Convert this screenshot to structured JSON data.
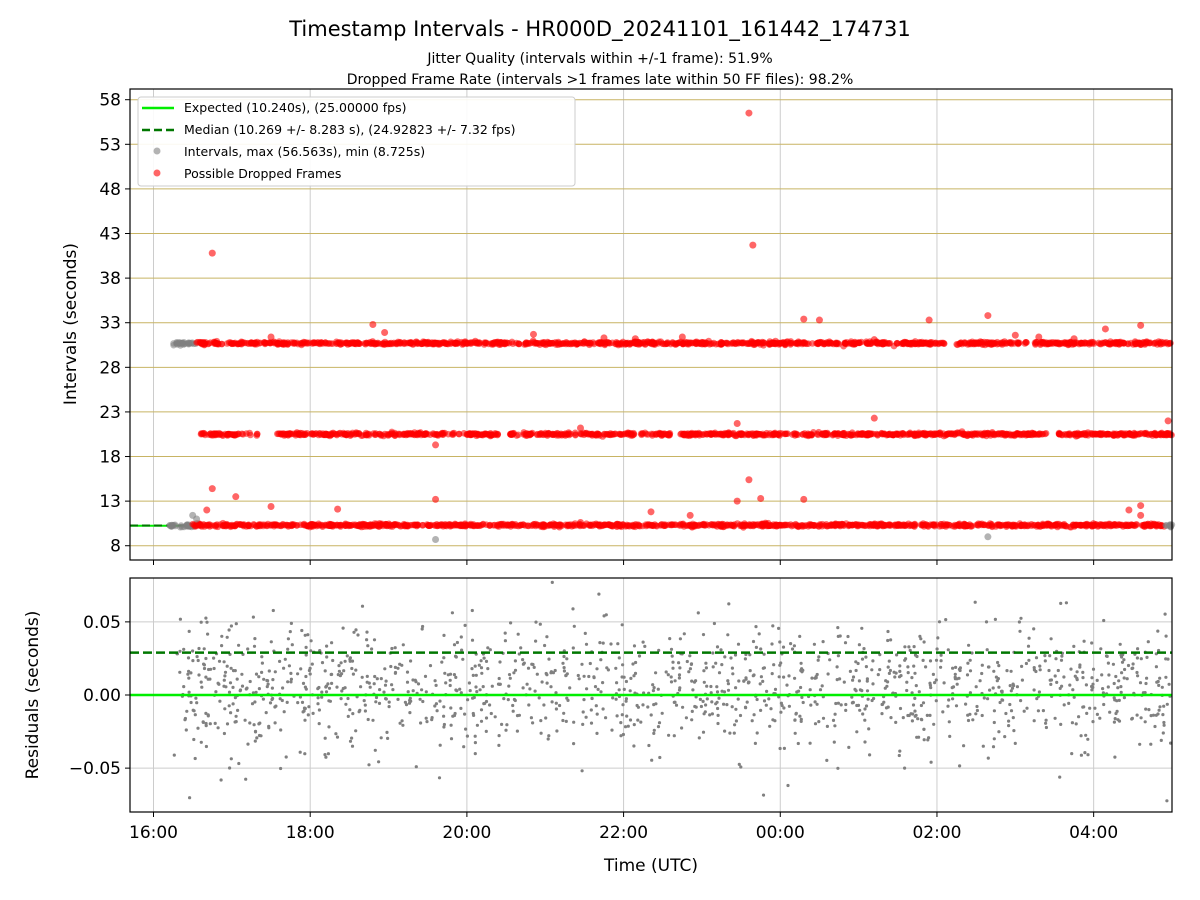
{
  "title": "Timestamp Intervals - HR000D_20241101_161442_174731",
  "subtitle1": "Jitter Quality (intervals within +/-1 frame): 51.9%",
  "subtitle2": "Dropped Frame Rate (intervals >1 frames late within 50 FF files): 98.2%",
  "colors": {
    "expected": "#00ee00",
    "median": "#007700",
    "intervals": "#808080",
    "dropped": "#ff0000",
    "hgrid_top": "#c8b464",
    "grid": "#cccccc"
  },
  "chart_data": [
    {
      "type": "scatter",
      "ylabel": "Intervals (seconds)",
      "ylim": [
        6.4,
        59.2
      ],
      "yticks": [
        8,
        13,
        18,
        23,
        28,
        33,
        38,
        43,
        48,
        53,
        58
      ],
      "xlim": [
        15.7,
        29.0
      ],
      "legend_position": "top-left",
      "grid": true,
      "legend": [
        "Expected (10.240s), (25.00000 fps)",
        "Median (10.269 +/- 8.283 s), (24.92823 +/- 7.32 fps)",
        "Intervals, max (56.563s), min (8.725s)",
        "Possible Dropped Frames"
      ],
      "expected": 10.24,
      "median": 10.269,
      "bands": [
        {
          "series": "Intervals",
          "y": 30.7,
          "x_range": [
            16.25,
            16.55
          ]
        },
        {
          "series": "Possible Dropped Frames",
          "y": 30.7,
          "x_range": [
            16.55,
            29.0
          ]
        },
        {
          "series": "Possible Dropped Frames",
          "y": 20.5,
          "x_range": [
            16.6,
            29.0
          ]
        },
        {
          "series": "Intervals",
          "y": 10.24,
          "x_range": [
            16.2,
            16.55
          ]
        },
        {
          "series": "Possible Dropped Frames",
          "y": 10.3,
          "x_range": [
            16.5,
            28.9
          ]
        },
        {
          "series": "Intervals",
          "y": 10.24,
          "x_range": [
            28.9,
            29.0
          ]
        }
      ],
      "outliers_dropped": [
        {
          "x": 16.75,
          "y": 40.8
        },
        {
          "x": 16.75,
          "y": 14.4
        },
        {
          "x": 16.68,
          "y": 12.0
        },
        {
          "x": 17.05,
          "y": 13.5
        },
        {
          "x": 17.5,
          "y": 31.4
        },
        {
          "x": 17.5,
          "y": 12.4
        },
        {
          "x": 18.35,
          "y": 12.1
        },
        {
          "x": 18.8,
          "y": 32.8
        },
        {
          "x": 18.95,
          "y": 31.9
        },
        {
          "x": 19.6,
          "y": 13.2
        },
        {
          "x": 19.6,
          "y": 19.3
        },
        {
          "x": 20.85,
          "y": 31.7
        },
        {
          "x": 21.45,
          "y": 10.6
        },
        {
          "x": 21.45,
          "y": 21.2
        },
        {
          "x": 21.75,
          "y": 31.3
        },
        {
          "x": 22.15,
          "y": 31.2
        },
        {
          "x": 22.35,
          "y": 11.8
        },
        {
          "x": 22.75,
          "y": 31.4
        },
        {
          "x": 22.85,
          "y": 11.4
        },
        {
          "x": 23.45,
          "y": 21.7
        },
        {
          "x": 23.45,
          "y": 13.0
        },
        {
          "x": 23.6,
          "y": 56.5
        },
        {
          "x": 23.6,
          "y": 15.4
        },
        {
          "x": 23.65,
          "y": 41.7
        },
        {
          "x": 23.75,
          "y": 13.3
        },
        {
          "x": 24.3,
          "y": 33.4
        },
        {
          "x": 24.3,
          "y": 13.2
        },
        {
          "x": 24.5,
          "y": 33.3
        },
        {
          "x": 25.2,
          "y": 31.1
        },
        {
          "x": 25.2,
          "y": 22.3
        },
        {
          "x": 25.9,
          "y": 33.3
        },
        {
          "x": 26.65,
          "y": 33.8
        },
        {
          "x": 26.65,
          "y": 20.6
        },
        {
          "x": 27.0,
          "y": 31.6
        },
        {
          "x": 27.3,
          "y": 31.4
        },
        {
          "x": 27.75,
          "y": 31.2
        },
        {
          "x": 28.15,
          "y": 32.3
        },
        {
          "x": 28.45,
          "y": 12.0
        },
        {
          "x": 28.6,
          "y": 32.7
        },
        {
          "x": 28.6,
          "y": 12.5
        },
        {
          "x": 28.6,
          "y": 11.4
        },
        {
          "x": 28.95,
          "y": 22.0
        }
      ],
      "outliers_gray": [
        {
          "x": 16.5,
          "y": 11.4
        },
        {
          "x": 16.55,
          "y": 11.0
        },
        {
          "x": 19.6,
          "y": 8.7
        },
        {
          "x": 26.65,
          "y": 9.0
        }
      ]
    },
    {
      "type": "scatter",
      "ylabel": "Residuals (seconds)",
      "xlabel": "Time (UTC)",
      "ylim": [
        -0.08,
        0.08
      ],
      "yticks": [
        0.05,
        0.0,
        -0.05
      ],
      "ytick_labels": [
        "0.05",
        "0.00",
        "−0.05"
      ],
      "xlim": [
        15.7,
        29.0
      ],
      "xticks": [
        16,
        18,
        20,
        22,
        24,
        26,
        28
      ],
      "xtick_labels": [
        "16:00",
        "18:00",
        "20:00",
        "22:00",
        "00:00",
        "02:00",
        "04:00"
      ],
      "grid": true,
      "expected_residual": 0.0,
      "median_residual": 0.029,
      "residual_summary": {
        "x_range": [
          16.25,
          29.0
        ],
        "center": 0.005,
        "spread": 0.022,
        "min": -0.078,
        "max": 0.078
      }
    }
  ]
}
